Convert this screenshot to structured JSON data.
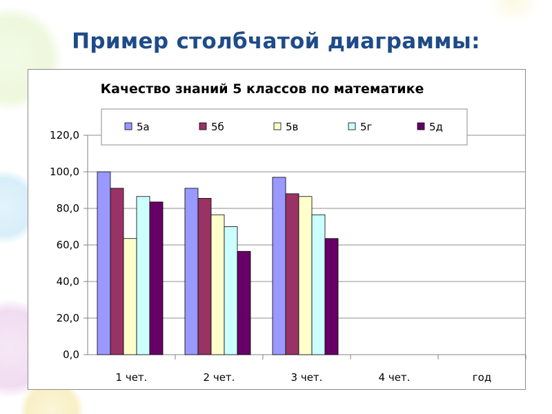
{
  "slide": {
    "title": "Пример столбчатой диаграммы:"
  },
  "chart_data": {
    "type": "bar",
    "title": "Качество знаний 5 классов по математике",
    "categories": [
      "1 чет.",
      "2 чет.",
      "3 чет.",
      "4 чет.",
      "год"
    ],
    "ylim": [
      0,
      120
    ],
    "yticks": [
      "0,0",
      "20,0",
      "40,0",
      "60,0",
      "80,0",
      "100,0",
      "120,0"
    ],
    "ytick_values": [
      0,
      20,
      40,
      60,
      80,
      100,
      120
    ],
    "grid": true,
    "legend_position": "top",
    "series": [
      {
        "name": "5а",
        "color": "#9999ff",
        "values": [
          100,
          91,
          97,
          null,
          null
        ]
      },
      {
        "name": "5б",
        "color": "#993366",
        "values": [
          91,
          85.5,
          88,
          null,
          null
        ]
      },
      {
        "name": "5в",
        "color": "#ffffcc",
        "values": [
          63.5,
          76.5,
          86.5,
          null,
          null
        ]
      },
      {
        "name": "5г",
        "color": "#ccffff",
        "values": [
          86.5,
          70,
          76.5,
          null,
          null
        ]
      },
      {
        "name": "5д",
        "color": "#660066",
        "values": [
          83.5,
          56.5,
          63.5,
          null,
          null
        ]
      }
    ]
  }
}
